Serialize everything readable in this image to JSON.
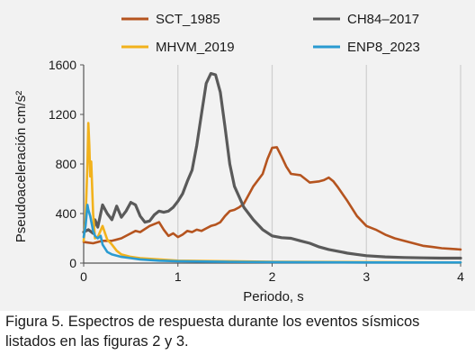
{
  "chart_data": {
    "type": "line",
    "ylabel": "Pseudoaceleración cm/s²",
    "xlabel": "Periodo, s",
    "xlim": [
      0,
      4
    ],
    "ylim": [
      0,
      1600
    ],
    "x_ticks": [
      0,
      1,
      2,
      3,
      4
    ],
    "y_ticks": [
      0,
      400,
      800,
      1200,
      1600
    ],
    "grid": "vertical",
    "legend_position": "top, two columns",
    "series": [
      {
        "name": "SCT_1985",
        "color": "#b5541f",
        "points": [
          [
            0,
            170
          ],
          [
            0.05,
            165
          ],
          [
            0.1,
            160
          ],
          [
            0.2,
            180
          ],
          [
            0.3,
            180
          ],
          [
            0.4,
            200
          ],
          [
            0.5,
            240
          ],
          [
            0.55,
            260
          ],
          [
            0.6,
            250
          ],
          [
            0.7,
            300
          ],
          [
            0.8,
            330
          ],
          [
            0.85,
            270
          ],
          [
            0.9,
            220
          ],
          [
            0.95,
            240
          ],
          [
            1.0,
            210
          ],
          [
            1.05,
            230
          ],
          [
            1.1,
            260
          ],
          [
            1.15,
            250
          ],
          [
            1.2,
            270
          ],
          [
            1.25,
            260
          ],
          [
            1.3,
            280
          ],
          [
            1.35,
            300
          ],
          [
            1.4,
            310
          ],
          [
            1.45,
            330
          ],
          [
            1.5,
            380
          ],
          [
            1.55,
            420
          ],
          [
            1.6,
            430
          ],
          [
            1.65,
            450
          ],
          [
            1.7,
            480
          ],
          [
            1.8,
            620
          ],
          [
            1.9,
            720
          ],
          [
            1.95,
            840
          ],
          [
            2.0,
            930
          ],
          [
            2.05,
            935
          ],
          [
            2.1,
            860
          ],
          [
            2.15,
            780
          ],
          [
            2.2,
            720
          ],
          [
            2.3,
            710
          ],
          [
            2.4,
            650
          ],
          [
            2.5,
            660
          ],
          [
            2.55,
            670
          ],
          [
            2.6,
            690
          ],
          [
            2.65,
            660
          ],
          [
            2.7,
            610
          ],
          [
            2.8,
            500
          ],
          [
            2.9,
            380
          ],
          [
            3.0,
            300
          ],
          [
            3.1,
            270
          ],
          [
            3.2,
            230
          ],
          [
            3.3,
            200
          ],
          [
            3.4,
            180
          ],
          [
            3.5,
            160
          ],
          [
            3.6,
            140
          ],
          [
            3.7,
            130
          ],
          [
            3.8,
            120
          ],
          [
            3.9,
            115
          ],
          [
            4.0,
            110
          ]
        ]
      },
      {
        "name": "CH84–2017",
        "color": "#5a5a5a",
        "points": [
          [
            0,
            250
          ],
          [
            0.05,
            270
          ],
          [
            0.1,
            240
          ],
          [
            0.12,
            350
          ],
          [
            0.15,
            290
          ],
          [
            0.2,
            470
          ],
          [
            0.25,
            400
          ],
          [
            0.3,
            350
          ],
          [
            0.35,
            460
          ],
          [
            0.4,
            370
          ],
          [
            0.45,
            420
          ],
          [
            0.5,
            490
          ],
          [
            0.55,
            470
          ],
          [
            0.6,
            380
          ],
          [
            0.65,
            330
          ],
          [
            0.7,
            340
          ],
          [
            0.75,
            390
          ],
          [
            0.8,
            420
          ],
          [
            0.85,
            410
          ],
          [
            0.9,
            420
          ],
          [
            0.95,
            450
          ],
          [
            1.0,
            500
          ],
          [
            1.05,
            560
          ],
          [
            1.1,
            660
          ],
          [
            1.15,
            750
          ],
          [
            1.2,
            950
          ],
          [
            1.25,
            1200
          ],
          [
            1.3,
            1450
          ],
          [
            1.35,
            1530
          ],
          [
            1.4,
            1520
          ],
          [
            1.45,
            1380
          ],
          [
            1.5,
            1100
          ],
          [
            1.55,
            800
          ],
          [
            1.6,
            620
          ],
          [
            1.7,
            450
          ],
          [
            1.8,
            350
          ],
          [
            1.9,
            270
          ],
          [
            2.0,
            220
          ],
          [
            2.1,
            205
          ],
          [
            2.2,
            200
          ],
          [
            2.3,
            180
          ],
          [
            2.4,
            160
          ],
          [
            2.5,
            130
          ],
          [
            2.6,
            110
          ],
          [
            2.7,
            95
          ],
          [
            2.8,
            80
          ],
          [
            2.9,
            70
          ],
          [
            3.0,
            60
          ],
          [
            3.2,
            50
          ],
          [
            3.4,
            45
          ],
          [
            3.6,
            42
          ],
          [
            3.8,
            40
          ],
          [
            4.0,
            40
          ]
        ]
      },
      {
        "name": "MHVM_2019",
        "color": "#f2b21c",
        "points": [
          [
            0,
            180
          ],
          [
            0.02,
            350
          ],
          [
            0.04,
            800
          ],
          [
            0.05,
            1130
          ],
          [
            0.06,
            950
          ],
          [
            0.07,
            700
          ],
          [
            0.08,
            820
          ],
          [
            0.1,
            400
          ],
          [
            0.12,
            200
          ],
          [
            0.15,
            210
          ],
          [
            0.2,
            300
          ],
          [
            0.25,
            190
          ],
          [
            0.3,
            150
          ],
          [
            0.35,
            100
          ],
          [
            0.4,
            70
          ],
          [
            0.5,
            50
          ],
          [
            0.6,
            40
          ],
          [
            0.8,
            30
          ],
          [
            1.0,
            20
          ],
          [
            1.5,
            15
          ],
          [
            2.0,
            10
          ],
          [
            3.0,
            8
          ],
          [
            4.0,
            5
          ]
        ]
      },
      {
        "name": "ENP8_2023",
        "color": "#2a9bd1",
        "points": [
          [
            0,
            210
          ],
          [
            0.02,
            300
          ],
          [
            0.04,
            470
          ],
          [
            0.05,
            430
          ],
          [
            0.07,
            380
          ],
          [
            0.1,
            260
          ],
          [
            0.12,
            220
          ],
          [
            0.15,
            200
          ],
          [
            0.18,
            220
          ],
          [
            0.2,
            150
          ],
          [
            0.25,
            90
          ],
          [
            0.3,
            70
          ],
          [
            0.4,
            50
          ],
          [
            0.5,
            40
          ],
          [
            0.6,
            30
          ],
          [
            0.8,
            20
          ],
          [
            1.0,
            15
          ],
          [
            1.5,
            10
          ],
          [
            2.0,
            8
          ],
          [
            3.0,
            5
          ],
          [
            4.0,
            5
          ]
        ]
      }
    ]
  },
  "caption": "Figura 5. Espectros de respuesta durante los eventos sísmicos listados en las figuras 2 y 3."
}
